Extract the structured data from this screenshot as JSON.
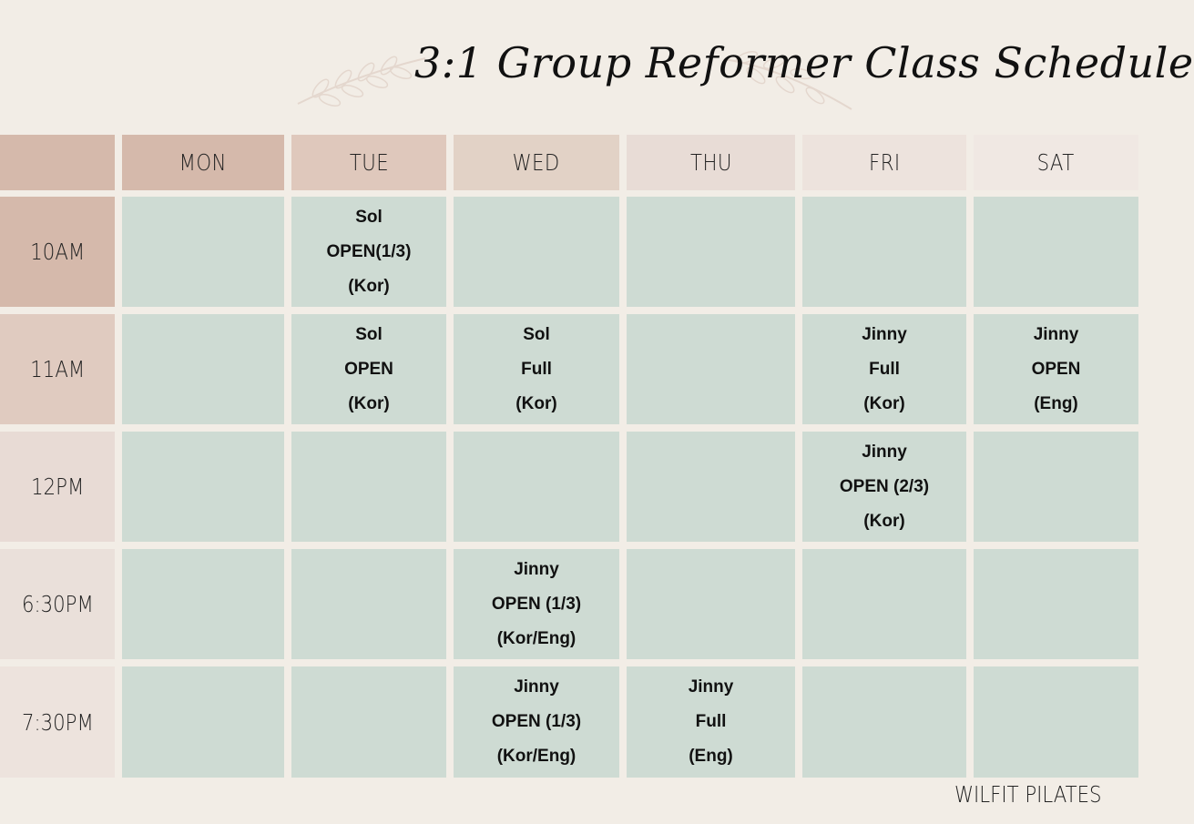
{
  "title": "3:1 Group Reformer Class Schedule",
  "footer": "WILFIT PILATES",
  "colors": {
    "background": "#f2ede6",
    "slot": "#cedbd3",
    "headers": [
      "#d5b9ab",
      "#d5b9ab",
      "#dfc8bc",
      "#e2d2c6",
      "#e8dcd6",
      "#ede3dd",
      "#f0e8e3"
    ],
    "times": [
      "#d5b9ab",
      "#e0cbc0",
      "#e8dbd5",
      "#eae0da",
      "#ede3dd"
    ]
  },
  "days": [
    "MON",
    "TUE",
    "WED",
    "THU",
    "FRI",
    "SAT"
  ],
  "rows": [
    {
      "time": "10AM",
      "cells": [
        [],
        [
          "Sol",
          "OPEN(1/3)",
          "(Kor)"
        ],
        [],
        [],
        [],
        []
      ]
    },
    {
      "time": "11AM",
      "cells": [
        [],
        [
          "Sol",
          "OPEN",
          "(Kor)"
        ],
        [
          "Sol",
          "Full",
          "(Kor)"
        ],
        [],
        [
          "Jinny",
          "Full",
          "(Kor)"
        ],
        [
          "Jinny",
          "OPEN",
          "(Eng)"
        ]
      ]
    },
    {
      "time": "12PM",
      "cells": [
        [],
        [],
        [],
        [],
        [
          "Jinny",
          "OPEN (2/3)",
          "(Kor)"
        ],
        []
      ]
    },
    {
      "time": "6:30PM",
      "cells": [
        [],
        [],
        [
          "Jinny",
          "OPEN (1/3)",
          "(Kor/Eng)"
        ],
        [],
        [],
        []
      ]
    },
    {
      "time": "7:30PM",
      "cells": [
        [],
        [],
        [
          "Jinny",
          "OPEN (1/3)",
          "(Kor/Eng)"
        ],
        [
          "Jinny",
          "Full",
          "(Eng)"
        ],
        [],
        []
      ]
    }
  ]
}
